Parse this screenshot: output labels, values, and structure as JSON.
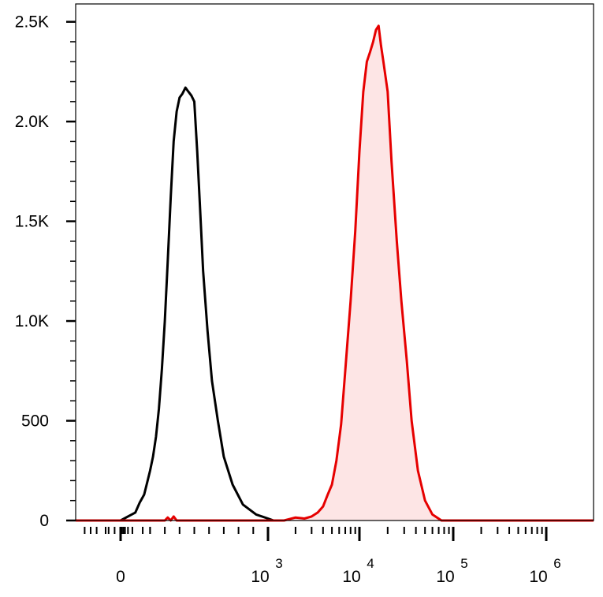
{
  "chart_data": {
    "type": "area",
    "title": "",
    "xlabel": "",
    "ylabel": "",
    "x_scale": "biexponential",
    "xlim": [
      -150,
      3000000
    ],
    "ylim": [
      0,
      2550
    ],
    "x_ticks": [
      {
        "value": 0,
        "base": "0",
        "sup": ""
      },
      {
        "value": 1000,
        "base": "10",
        "sup": "3"
      },
      {
        "value": 10000,
        "base": "10",
        "sup": "4"
      },
      {
        "value": 100000,
        "base": "10",
        "sup": "5"
      },
      {
        "value": 1000000,
        "base": "10",
        "sup": "6"
      }
    ],
    "y_ticks": [
      {
        "value": 0,
        "label": "0"
      },
      {
        "value": 500,
        "label": "500"
      },
      {
        "value": 1000,
        "label": "1.0K"
      },
      {
        "value": 1500,
        "label": "1.5K"
      },
      {
        "value": 2000,
        "label": "2.0K"
      },
      {
        "value": 2500,
        "label": "2.5K"
      }
    ],
    "grid": false,
    "legend": "none",
    "series": [
      {
        "color": "#000000",
        "fill": "none",
        "points": [
          [
            0,
            0
          ],
          [
            50,
            20
          ],
          [
            100,
            40
          ],
          [
            130,
            90
          ],
          [
            160,
            130
          ],
          [
            180,
            190
          ],
          [
            200,
            250
          ],
          [
            220,
            320
          ],
          [
            240,
            420
          ],
          [
            260,
            560
          ],
          [
            280,
            760
          ],
          [
            300,
            1000
          ],
          [
            320,
            1300
          ],
          [
            340,
            1620
          ],
          [
            360,
            1900
          ],
          [
            380,
            2050
          ],
          [
            400,
            2120
          ],
          [
            420,
            2140
          ],
          [
            440,
            2170
          ],
          [
            460,
            2150
          ],
          [
            480,
            2130
          ],
          [
            500,
            2100
          ],
          [
            520,
            1850
          ],
          [
            540,
            1550
          ],
          [
            560,
            1250
          ],
          [
            590,
            950
          ],
          [
            620,
            700
          ],
          [
            660,
            500
          ],
          [
            700,
            320
          ],
          [
            760,
            180
          ],
          [
            830,
            80
          ],
          [
            920,
            30
          ],
          [
            1000,
            10
          ],
          [
            1150,
            0
          ],
          [
            1500,
            0
          ]
        ]
      },
      {
        "color": "#e60000",
        "fill": "#fde5e5",
        "points": [
          [
            -150,
            0
          ],
          [
            300,
            0
          ],
          [
            320,
            15
          ],
          [
            340,
            0
          ],
          [
            360,
            20
          ],
          [
            380,
            0
          ],
          [
            1500,
            0
          ],
          [
            2000,
            15
          ],
          [
            2500,
            10
          ],
          [
            3000,
            20
          ],
          [
            3500,
            40
          ],
          [
            4000,
            70
          ],
          [
            4500,
            130
          ],
          [
            5000,
            180
          ],
          [
            5600,
            300
          ],
          [
            6300,
            480
          ],
          [
            7000,
            750
          ],
          [
            8000,
            1100
          ],
          [
            9000,
            1450
          ],
          [
            10000,
            1850
          ],
          [
            11000,
            2150
          ],
          [
            12000,
            2300
          ],
          [
            13000,
            2350
          ],
          [
            14000,
            2400
          ],
          [
            15000,
            2460
          ],
          [
            16000,
            2480
          ],
          [
            17000,
            2380
          ],
          [
            18000,
            2300
          ],
          [
            20000,
            2150
          ],
          [
            22000,
            1800
          ],
          [
            25000,
            1400
          ],
          [
            28000,
            1100
          ],
          [
            32000,
            800
          ],
          [
            36000,
            500
          ],
          [
            42000,
            250
          ],
          [
            50000,
            100
          ],
          [
            60000,
            30
          ],
          [
            75000,
            0
          ],
          [
            3000000,
            0
          ]
        ]
      }
    ]
  }
}
